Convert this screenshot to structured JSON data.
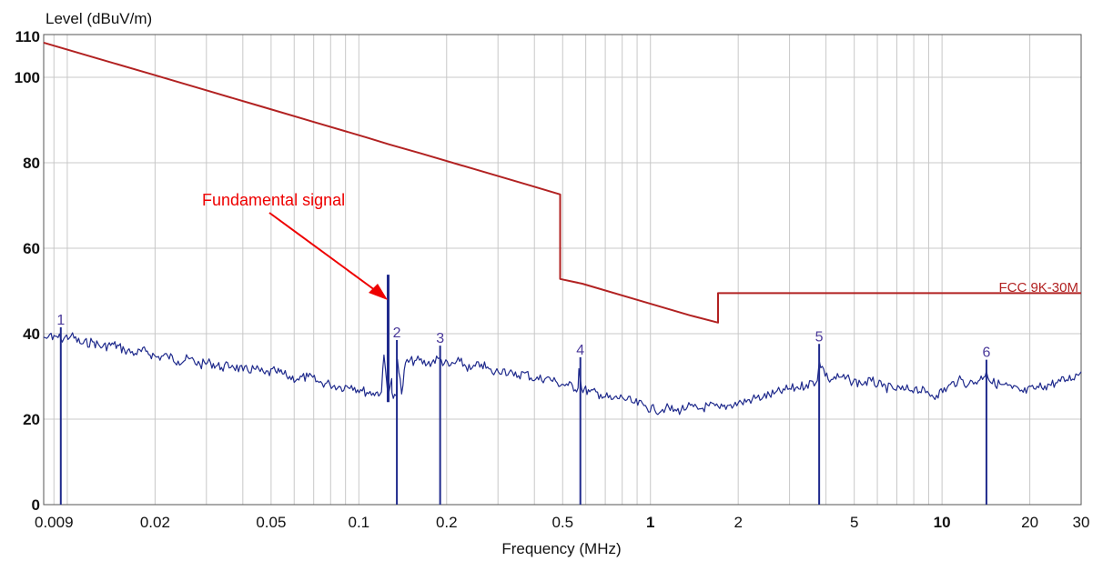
{
  "chart_data": {
    "type": "line",
    "ylabel": "Level (dBuV/m)",
    "xlabel": "Frequency (MHz)",
    "x_scale": "log",
    "xlim": [
      0.0083,
      30
    ],
    "ylim": [
      0,
      110
    ],
    "grid": true,
    "x_ticks": [
      {
        "value": 0.009,
        "label": "0.009",
        "major": false
      },
      {
        "value": 0.02,
        "label": "0.02",
        "major": false
      },
      {
        "value": 0.05,
        "label": "0.05",
        "major": false
      },
      {
        "value": 0.1,
        "label": "0.1",
        "major": false
      },
      {
        "value": 0.2,
        "label": "0.2",
        "major": false
      },
      {
        "value": 0.5,
        "label": "0.5",
        "major": false
      },
      {
        "value": 1,
        "label": "1",
        "major": true
      },
      {
        "value": 2,
        "label": "2",
        "major": false
      },
      {
        "value": 5,
        "label": "5",
        "major": false
      },
      {
        "value": 10,
        "label": "10",
        "major": true
      },
      {
        "value": 20,
        "label": "20",
        "major": false
      },
      {
        "value": 30,
        "label": "30",
        "major": false
      }
    ],
    "y_ticks": [
      {
        "value": 0,
        "label": "0"
      },
      {
        "value": 20,
        "label": "20"
      },
      {
        "value": 40,
        "label": "40"
      },
      {
        "value": 60,
        "label": "60"
      },
      {
        "value": 80,
        "label": "80"
      },
      {
        "value": 100,
        "label": "100"
      },
      {
        "value": 110,
        "label": "110"
      }
    ],
    "series": [
      {
        "name": "FCC 9K-30M",
        "color": "#b22222",
        "x": [
          0.0083,
          0.0127,
          0.0195,
          0.0298,
          0.0456,
          0.0697,
          0.1066,
          0.127,
          0.1631,
          0.2495,
          0.3816,
          0.49,
          0.49,
          0.5838,
          0.8929,
          1.3657,
          1.705,
          1.705,
          5.6,
          13.05,
          30
        ],
        "y": [
          108.1,
          104.4,
          100.7,
          97.0,
          93.3,
          89.6,
          85.9,
          84.3,
          82.2,
          78.5,
          74.8,
          72.6,
          52.8,
          51.7,
          48.0,
          44.3,
          42.6,
          49.5,
          49.5,
          49.5,
          49.5
        ]
      },
      {
        "name": "",
        "color": "#1f2a8c",
        "x": [
          0.0083,
          0.0085,
          0.0087,
          0.0089,
          0.0091,
          0.0095,
          0.0103,
          0.0112,
          0.0122,
          0.0132,
          0.0144,
          0.0157,
          0.0171,
          0.0186,
          0.0203,
          0.0221,
          0.024,
          0.0262,
          0.0285,
          0.031,
          0.0338,
          0.0368,
          0.0401,
          0.0437,
          0.0476,
          0.0518,
          0.0565,
          0.0615,
          0.067,
          0.073,
          0.0795,
          0.0866,
          0.0943,
          0.1027,
          0.1119,
          0.1196,
          0.1219,
          0.1253,
          0.1266,
          0.1296,
          0.1299,
          0.1326,
          0.1345,
          0.1356,
          0.1402,
          0.1446,
          0.1575,
          0.1716,
          0.1869,
          0.2036,
          0.2218,
          0.2416,
          0.2632,
          0.2867,
          0.3123,
          0.3402,
          0.3706,
          0.4037,
          0.4398,
          0.4791,
          0.5219,
          0.5646,
          0.5685,
          0.5801,
          0.6193,
          0.6746,
          0.7349,
          0.8005,
          0.8721,
          0.95,
          1.0349,
          1.1273,
          1.228,
          1.3377,
          1.4572,
          1.5874,
          1.7292,
          1.8837,
          2.052,
          2.2353,
          2.435,
          2.6525,
          2.8895,
          3.1476,
          3.4288,
          3.7351,
          3.794,
          4.0688,
          4.4323,
          4.8282,
          5.2596,
          5.7294,
          6.2413,
          6.7988,
          7.4062,
          8.0678,
          8.7886,
          9.5737,
          10.429,
          11.3606,
          12.3755,
          13.481,
          14.2,
          14.6853,
          15.9972,
          17.4263,
          18.983,
          20.6789,
          22.5262,
          24.5386,
          26.7307,
          29.1187,
          30
        ],
        "y": [
          39.2,
          38.9,
          39.8,
          38.6,
          39.4,
          38.8,
          39.5,
          37.6,
          38.1,
          36.9,
          37.5,
          36.2,
          35.4,
          35.9,
          34.5,
          34.8,
          33.6,
          34.1,
          32.8,
          33.2,
          32.1,
          32.6,
          31.3,
          31.8,
          30.6,
          31.2,
          30.1,
          29.4,
          29.9,
          28.6,
          28.2,
          27.5,
          27.9,
          26.6,
          26.1,
          26.4,
          35.0,
          26.8,
          26.0,
          29.5,
          26.2,
          25.8,
          25.4,
          34.0,
          25.9,
          33.2,
          33.8,
          32.9,
          34.2,
          32.4,
          33.5,
          31.6,
          32.9,
          30.8,
          31.7,
          30.1,
          30.8,
          29.3,
          29.7,
          28.5,
          27.9,
          27.3,
          31.8,
          27.2,
          26.4,
          25.8,
          24.6,
          25.1,
          23.8,
          23.2,
          22.1,
          22.6,
          21.9,
          22.8,
          22.3,
          23.1,
          22.5,
          23.4,
          23.9,
          24.7,
          25.2,
          25.9,
          26.8,
          27.3,
          28.1,
          29.0,
          33.6,
          29.3,
          29.8,
          29.1,
          28.4,
          28.9,
          27.6,
          27.1,
          26.8,
          27.3,
          26.2,
          25.6,
          27.4,
          29.1,
          28.3,
          29.2,
          31.2,
          28.6,
          28.1,
          27.2,
          26.3,
          27.1,
          27.8,
          28.5,
          29.2,
          30.4,
          31.1
        ]
      }
    ],
    "markers": [
      {
        "id": "1",
        "freq": 0.0095,
        "level": 41.5
      },
      {
        "id": "2",
        "freq": 0.135,
        "level": 38.5
      },
      {
        "id": "3",
        "freq": 0.19,
        "level": 37.2
      },
      {
        "id": "4",
        "freq": 0.575,
        "level": 34.5
      },
      {
        "id": "5",
        "freq": 3.79,
        "level": 37.6
      },
      {
        "id": "6",
        "freq": 14.2,
        "level": 33.9
      }
    ],
    "fundamental": {
      "freq": 0.126,
      "level": 53.8
    },
    "annotation": {
      "text": "Fundamental signal",
      "color": "#ee0000"
    },
    "limit_label": "FCC 9K-30M",
    "trace_color": "#1f2a8c",
    "limit_color": "#b22222",
    "marker_color": "#4b3a9a"
  }
}
